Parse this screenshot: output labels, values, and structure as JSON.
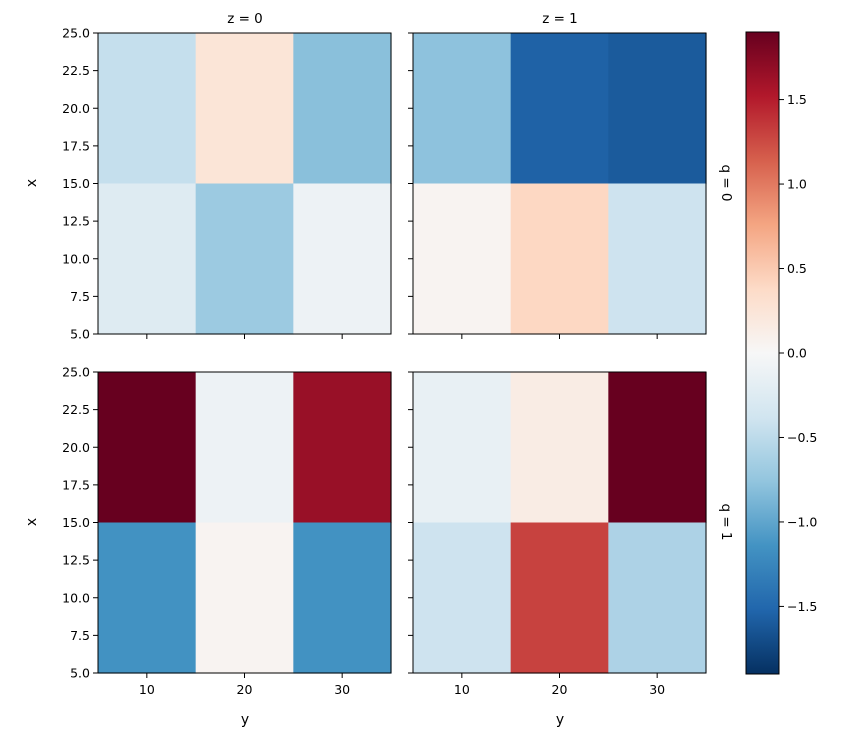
{
  "chart_data": {
    "type": "heatmap",
    "facet_columns": [
      "z = 0",
      "z = 1"
    ],
    "facet_rows": [
      "q = 0",
      "q = 1"
    ],
    "xlabel": "y",
    "ylabel": "x",
    "x_ticks": [
      "10",
      "20",
      "30"
    ],
    "y_ticks": [
      "5.0",
      "7.5",
      "10.0",
      "12.5",
      "15.0",
      "17.5",
      "20.0",
      "22.5",
      "25.0"
    ],
    "y_range": [
      5,
      25
    ],
    "x_categories": [
      10,
      20,
      30
    ],
    "x_bin_edges": [
      5,
      15,
      25,
      35
    ],
    "y_bin_edges": [
      5,
      15,
      25
    ],
    "colormap": "RdBu_r",
    "vmin": -1.9,
    "vmax": 1.9,
    "colorbar_ticks": [
      "1.5",
      "1.0",
      "0.5",
      "0.0",
      "−0.5",
      "−1.0",
      "−1.5"
    ],
    "colorbar_tick_values": [
      1.5,
      1.0,
      0.5,
      0.0,
      -0.5,
      -1.0,
      -1.5
    ],
    "panels": [
      {
        "row": 0,
        "col": 0,
        "values": [
          [
            -0.45,
            0.25,
            -0.8
          ],
          [
            -0.25,
            -0.7,
            -0.1
          ]
        ]
      },
      {
        "row": 0,
        "col": 1,
        "values": [
          [
            -0.78,
            -1.55,
            -1.6
          ],
          [
            0.05,
            0.4,
            -0.4
          ]
        ]
      },
      {
        "row": 1,
        "col": 0,
        "values": [
          [
            1.9,
            -0.1,
            1.65
          ],
          [
            -1.15,
            0.05,
            -1.15
          ]
        ]
      },
      {
        "row": 1,
        "col": 1,
        "values": [
          [
            -0.15,
            0.15,
            1.9
          ],
          [
            -0.4,
            1.3,
            -0.6
          ]
        ]
      }
    ]
  }
}
